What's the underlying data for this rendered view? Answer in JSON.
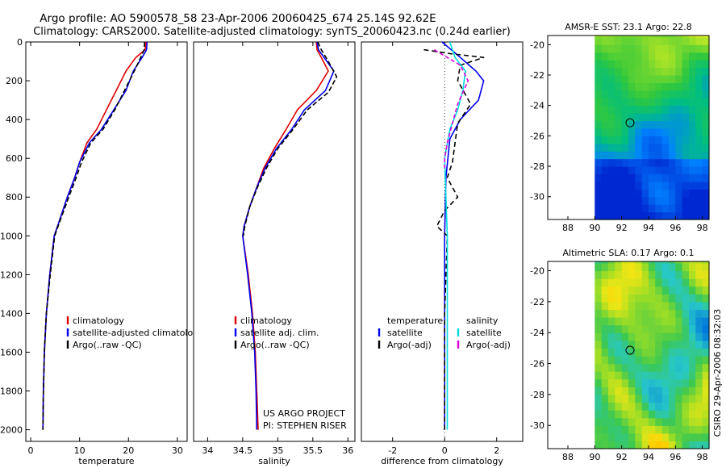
{
  "title_line1": "Argo profile: AO 5900578_58 23-Apr-2006 20060425_674 25.14S 92.62E",
  "title_line2": "Climatology: CARS2000. Satellite-adjusted climatology: synTS_20060423.nc (0.24d earlier)",
  "credit_line1": "US ARGO PROJECT",
  "credit_line2": "PI: STEPHEN RISER",
  "side_label": "CSIRO 29-Apr-2006 08:32:03",
  "colors": {
    "climatology": "#dd0000",
    "satellite": "#0000ee",
    "argo": "#000000",
    "sal_satellite": "#00dddd",
    "sal_argo": "#dd00dd"
  },
  "chart_data": [
    {
      "type": "line",
      "name": "temperature-profile",
      "xlabel": "temperature",
      "xlim": [
        -1,
        32
      ],
      "ylim": [
        0,
        2060
      ],
      "xticks": [
        0,
        10,
        20,
        30
      ],
      "yticks": [
        0,
        200,
        400,
        600,
        800,
        1000,
        1200,
        1400,
        1600,
        1800,
        2000
      ],
      "legend": [
        "climatology",
        "satellite-adjusted climatology",
        "Argo(..raw -QC)"
      ],
      "series": [
        {
          "name": "climatology",
          "color_key": "climatology",
          "dash": "",
          "x": [
            23.6,
            23.4,
            21.5,
            19.5,
            17.5,
            15.5,
            13.5,
            11.5,
            10.0,
            9.0,
            7.5,
            5.5,
            4.8,
            3.9,
            3.2,
            2.8,
            2.6,
            2.5
          ],
          "y": [
            0,
            40,
            80,
            150,
            250,
            350,
            450,
            520,
            620,
            700,
            800,
            950,
            1000,
            1200,
            1400,
            1600,
            1800,
            2000
          ]
        },
        {
          "name": "satellite-adjusted climatology",
          "color_key": "satellite",
          "dash": "",
          "x": [
            23.8,
            23.7,
            22.8,
            21.0,
            19.5,
            17.0,
            14.5,
            12.0,
            10.0,
            9.0,
            7.5,
            5.5,
            4.8,
            3.9,
            3.2,
            2.8,
            2.6,
            2.5
          ],
          "y": [
            0,
            40,
            80,
            150,
            250,
            350,
            450,
            520,
            620,
            700,
            800,
            950,
            1000,
            1200,
            1400,
            1600,
            1800,
            2000
          ]
        },
        {
          "name": "Argo(..raw -QC)",
          "color_key": "argo",
          "dash": "6 3",
          "x": [
            23.3,
            23.2,
            22.5,
            21.2,
            19.2,
            17.2,
            14.8,
            12.3,
            10.4,
            9.3,
            7.8,
            5.6,
            4.9,
            4.0,
            3.2,
            2.8,
            2.6,
            2.5
          ],
          "y": [
            0,
            40,
            80,
            150,
            250,
            350,
            450,
            520,
            620,
            700,
            800,
            950,
            1000,
            1200,
            1400,
            1600,
            1800,
            2000
          ]
        }
      ]
    },
    {
      "type": "line",
      "name": "salinity-profile",
      "xlabel": "salinity",
      "xlim": [
        33.8,
        36.1
      ],
      "ylim": [
        0,
        2060
      ],
      "xticks": [
        34,
        34.5,
        35,
        35.5,
        36
      ],
      "yticks": [],
      "legend": [
        "climatology",
        "satellite adj. clim.",
        "Argo(..raw -QC)"
      ],
      "series": [
        {
          "name": "climatology",
          "color_key": "climatology",
          "dash": "",
          "x": [
            35.55,
            35.56,
            35.62,
            35.72,
            35.55,
            35.28,
            35.12,
            34.95,
            34.8,
            34.7,
            34.6,
            34.52,
            34.5,
            34.58,
            34.64,
            34.68,
            34.7,
            34.72
          ],
          "y": [
            0,
            40,
            80,
            150,
            250,
            350,
            450,
            550,
            650,
            750,
            850,
            950,
            1000,
            1200,
            1400,
            1600,
            1800,
            2000
          ]
        },
        {
          "name": "satellite adj. clim.",
          "color_key": "satellite",
          "dash": "",
          "x": [
            35.56,
            35.58,
            35.66,
            35.8,
            35.68,
            35.38,
            35.2,
            34.98,
            34.82,
            34.7,
            34.6,
            34.52,
            34.5,
            34.57,
            34.63,
            34.67,
            34.69,
            34.7
          ],
          "y": [
            0,
            40,
            80,
            150,
            250,
            350,
            450,
            550,
            650,
            750,
            850,
            950,
            1000,
            1200,
            1400,
            1600,
            1800,
            2000
          ]
        },
        {
          "name": "Argo(..raw -QC)",
          "color_key": "argo",
          "dash": "6 3",
          "x": [
            35.57,
            35.62,
            35.72,
            35.84,
            35.72,
            35.42,
            35.22,
            35.0,
            34.84,
            34.71,
            34.6,
            34.53,
            34.51
          ],
          "y": [
            0,
            40,
            100,
            180,
            260,
            350,
            450,
            550,
            650,
            750,
            850,
            950,
            1000
          ]
        }
      ]
    },
    {
      "type": "line",
      "name": "difference-profile",
      "xlabel": "difference from climatology",
      "xlim": [
        -3.2,
        3.0
      ],
      "ylim": [
        0,
        2060
      ],
      "xticks": [
        -2,
        0,
        2
      ],
      "yticks": [],
      "legend_groups": [
        {
          "title": "temperature",
          "items": [
            "satellite",
            "Argo(-adj)"
          ]
        },
        {
          "title": "salinity",
          "items": [
            "satellite",
            "Argo(-adj)"
          ]
        }
      ],
      "series": [
        {
          "name": "temperature satellite",
          "color_key": "satellite",
          "dash": "",
          "x": [
            -0.1,
            0.6,
            1.2,
            1.5,
            1.3,
            0.6,
            0.2,
            0.05,
            0.0,
            0.0,
            0.0
          ],
          "y": [
            0,
            80,
            150,
            200,
            300,
            400,
            500,
            700,
            1000,
            1500,
            2000
          ]
        },
        {
          "name": "temperature Argo(-adj)",
          "color_key": "argo",
          "dash": "6 4",
          "x": [
            -0.8,
            0.2,
            1.5,
            0.6,
            0.5,
            1.0,
            0.5,
            0.4,
            0.3,
            0.1,
            0.5,
            0.0,
            -0.3,
            0.1,
            0.0,
            0.0
          ],
          "y": [
            40,
            60,
            80,
            120,
            200,
            320,
            420,
            520,
            620,
            700,
            800,
            870,
            950,
            1000,
            1400,
            2000
          ]
        },
        {
          "name": "salinity satellite",
          "color_key": "sal_satellite",
          "dash": "",
          "x": [
            0.2,
            0.4,
            0.8,
            0.7,
            0.5,
            0.2,
            0.0,
            0.05,
            0.1,
            0.1
          ],
          "y": [
            0,
            80,
            150,
            250,
            350,
            450,
            600,
            800,
            1000,
            2000
          ]
        },
        {
          "name": "salinity Argo(-adj)",
          "color_key": "sal_argo",
          "dash": "5 3",
          "x": [
            -0.4,
            0.6,
            0.9,
            0.5,
            0.3,
            0.1,
            0.0,
            0.0
          ],
          "y": [
            40,
            120,
            200,
            320,
            420,
            520,
            600,
            650
          ]
        }
      ],
      "zero_line": true
    },
    {
      "type": "heatmap",
      "name": "amsre-sst-map",
      "title": "AMSR-E SST: 23.1 Argo: 22.8",
      "xlim": [
        86.5,
        98.5
      ],
      "ylim": [
        -31.5,
        -19.4
      ],
      "xticks": [
        88,
        90,
        92,
        94,
        96,
        98
      ],
      "yticks": [
        -20,
        -22,
        -24,
        -26,
        -28,
        -30
      ],
      "argo_position": {
        "lon": 92.62,
        "lat": -25.14
      },
      "data_lon_range": [
        90,
        98.5
      ],
      "palette": "sst"
    },
    {
      "type": "heatmap",
      "name": "altimetric-sla-map",
      "title": "Altimetric SLA: 0.17 Argo: 0.1",
      "xlim": [
        86.5,
        98.5
      ],
      "ylim": [
        -31.5,
        -19.4
      ],
      "xticks": [
        88,
        90,
        92,
        94,
        96,
        98
      ],
      "yticks": [
        -20,
        -22,
        -24,
        -26,
        -28,
        -30
      ],
      "argo_position": {
        "lon": 92.62,
        "lat": -25.14
      },
      "data_lon_range": [
        90,
        98.5
      ],
      "palette": "sla"
    }
  ]
}
